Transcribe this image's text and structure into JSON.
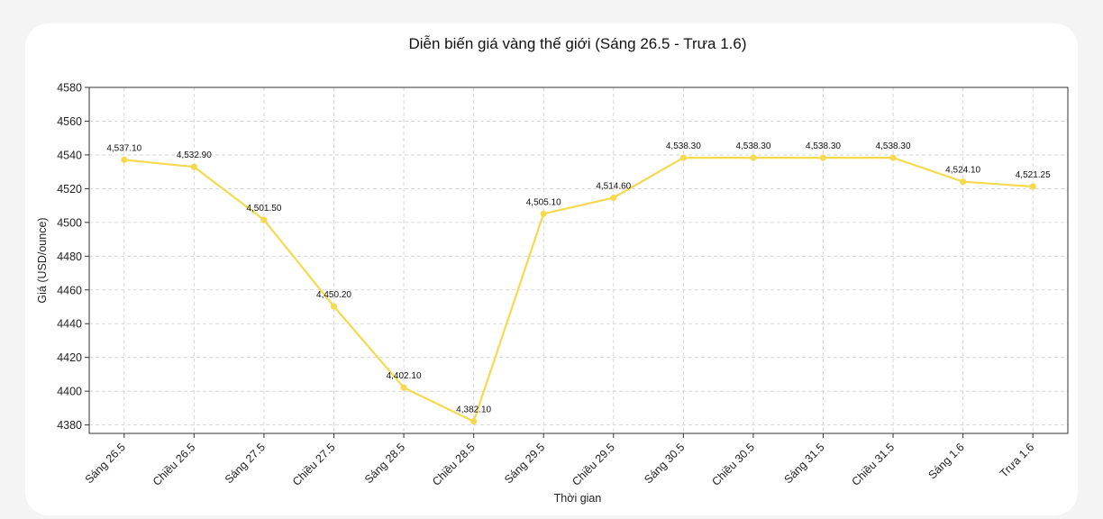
{
  "chart_data": {
    "type": "line",
    "title": "Diễn biến giá vàng thế giới (Sáng 26.5 - Trưa 1.6)",
    "xlabel": "Thời gian",
    "ylabel": "Giá (USD/ounce)",
    "categories": [
      "Sáng 26.5",
      "Chiều 26.5",
      "Sáng 27.5",
      "Chiều 27.5",
      "Sáng 28.5",
      "Chiều 28.5",
      "Sáng 29.5",
      "Chiều 29.5",
      "Sáng 30.5",
      "Chiều 30.5",
      "Sáng 31.5",
      "Chiều 31.5",
      "Sáng 1.6",
      "Trưa 1.6"
    ],
    "values": [
      4537.1,
      4532.9,
      4501.5,
      4450.2,
      4402.1,
      4382.1,
      4505.1,
      4514.6,
      4538.3,
      4538.3,
      4538.3,
      4538.3,
      4524.1,
      4521.25
    ],
    "data_labels": [
      "4,537.10",
      "4,532.90",
      "4,501.50",
      "4,450.20",
      "4,402.10",
      "4,382.10",
      "4,505.10",
      "4,514.60",
      "4,538.30",
      "4,538.30",
      "4,538.30",
      "4,538.30",
      "4,524.10",
      "4,521.25"
    ],
    "ylim": [
      4375,
      4580
    ],
    "yticks": [
      4380,
      4400,
      4420,
      4440,
      4460,
      4480,
      4500,
      4520,
      4540,
      4560,
      4580
    ],
    "grid": true,
    "color": "#f5d94e"
  }
}
